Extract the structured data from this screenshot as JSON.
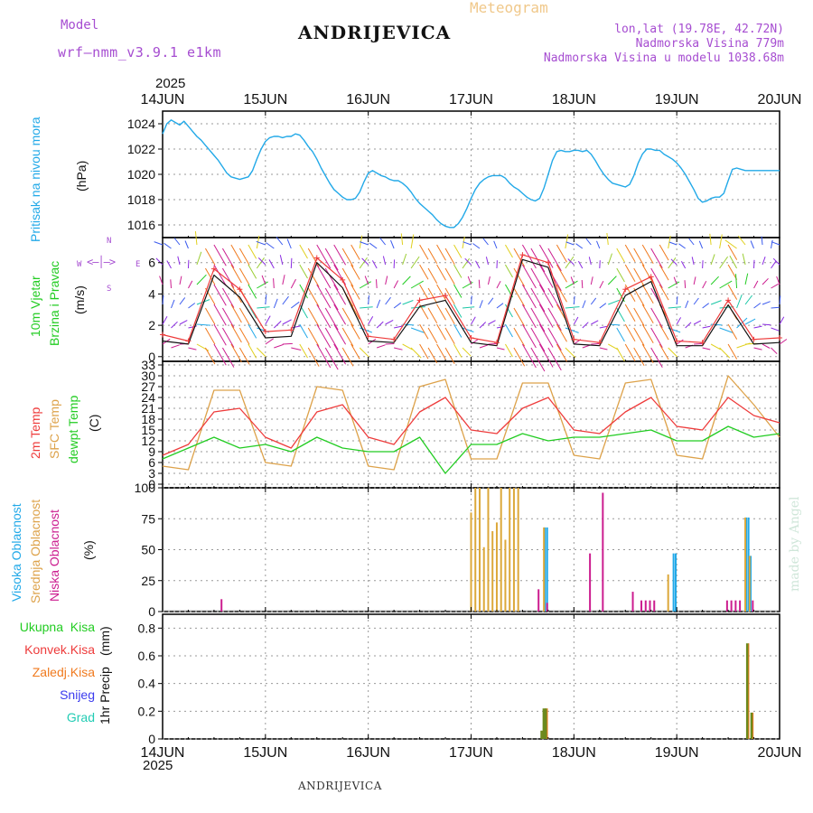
{
  "header": {
    "model_label": "Model",
    "model_name": "wrf–nmm_v3.9.1  e1km",
    "title": "ANDRIJEVICA",
    "meteogram": "Meteogram",
    "lonlat": "lon,lat (19.78E, 42.72N)",
    "elevation": "Nadmorska Visina 779m",
    "model_elevation": "Nadmorska Visina u modelu 1038.68m",
    "year": "2025",
    "footer_title": "ANDRIJEVICA",
    "credit": "made by Angel"
  },
  "colors": {
    "pressure": "#22a9e8",
    "temp": "#ee3b3b",
    "sfc": "#dda24a",
    "dew": "#22cc22",
    "high": "#22a9e8",
    "mid": "#dca83a",
    "low": "#cc1d8f",
    "total": "#22cc22",
    "conv": "#ee3b3b",
    "strat": "#f07a1e",
    "snow": "#3b3bee",
    "hail": "#22ccb4",
    "purple": "#a64dd1"
  },
  "x_days": [
    "14JUN",
    "15JUN",
    "16JUN",
    "17JUN",
    "18JUN",
    "19JUN",
    "20JUN"
  ],
  "chart_data": [
    {
      "type": "line",
      "panel": "pressure",
      "ylabel_name": "Pritisak na nivou mora",
      "ylabel_unit": "(hPa)",
      "yticks": [
        "1016",
        "1018",
        "1020",
        "1022",
        "1024"
      ],
      "ylim": [
        1015,
        1025
      ],
      "x": [
        0,
        1,
        2,
        3,
        4,
        5,
        6,
        7,
        8,
        9,
        10,
        11,
        12,
        13,
        14,
        15,
        16,
        17,
        18,
        19,
        20,
        21,
        22,
        23,
        24,
        25,
        26,
        27,
        28,
        29,
        30,
        31,
        32,
        33,
        34,
        35,
        36,
        37,
        38,
        39,
        40,
        41,
        42,
        43,
        44,
        45,
        46,
        47,
        48,
        49,
        50,
        51,
        52,
        53,
        54,
        55,
        56,
        57,
        58,
        59,
        60,
        61,
        62,
        63,
        64,
        65,
        66,
        67,
        68,
        69,
        70,
        71,
        72,
        73,
        74,
        75,
        76,
        77,
        78,
        79,
        80,
        81,
        82,
        83,
        84,
        85,
        86,
        87,
        88,
        89,
        90,
        91,
        92,
        93,
        94,
        95,
        96,
        97,
        98,
        99,
        100,
        101,
        102,
        103,
        104,
        105,
        106,
        107,
        108,
        109,
        110,
        111,
        112,
        113,
        114,
        115,
        116,
        117,
        118,
        119,
        120,
        121,
        122,
        123,
        124,
        125,
        126,
        127,
        128,
        129,
        130,
        131,
        132,
        133,
        134,
        135,
        136,
        137,
        138,
        139,
        140,
        141,
        142,
        143,
        144
      ],
      "series": [
        {
          "values": [
            1023.2,
            1024,
            1024.3,
            1024.1,
            1023.9,
            1024.2,
            1023.8,
            1023.4,
            1023,
            1022.7,
            1022.3,
            1021.9,
            1021.5,
            1021.1,
            1020.6,
            1020.1,
            1019.8,
            1019.7,
            1019.6,
            1019.7,
            1019.8,
            1020.3,
            1021.2,
            1022,
            1022.6,
            1022.9,
            1023,
            1023,
            1022.9,
            1023,
            1023,
            1023.2,
            1023.1,
            1022.7,
            1022.2,
            1021.8,
            1021.2,
            1020.5,
            1019.9,
            1019.3,
            1018.8,
            1018.5,
            1018.2,
            1018,
            1018,
            1018.1,
            1018.6,
            1019.4,
            1020.1,
            1020.3,
            1020.1,
            1019.9,
            1019.8,
            1019.6,
            1019.5,
            1019.5,
            1019.3,
            1019,
            1018.6,
            1018.1,
            1017.7,
            1017.4,
            1017.1,
            1016.8,
            1016.4,
            1016.1,
            1015.9,
            1015.8,
            1015.8,
            1016.1,
            1016.6,
            1017.3,
            1018.1,
            1018.8,
            1019.3,
            1019.6,
            1019.8,
            1019.9,
            1019.9,
            1019.9,
            1019.7,
            1019.3,
            1019,
            1018.8,
            1018.5,
            1018.2,
            1018,
            1017.9,
            1018.1,
            1018.9,
            1020,
            1021.1,
            1021.8,
            1021.9,
            1021.8,
            1021.8,
            1021.9,
            1021.9,
            1021.8,
            1021.9,
            1021.6,
            1021.1,
            1020.5,
            1020,
            1019.6,
            1019.3,
            1019.2,
            1019.1,
            1019,
            1019.2,
            1019.9,
            1020.9,
            1021.6,
            1022,
            1022,
            1021.9,
            1021.9,
            1021.6,
            1021.4,
            1021.2,
            1020.9,
            1020.5,
            1020,
            1019.4,
            1018.8,
            1018.1,
            1017.8,
            1017.9,
            1018.1,
            1018.2,
            1018.2,
            1018.5,
            1019.5,
            1020.4,
            1020.5,
            1020.4,
            1020.3,
            1020.3,
            1020.3,
            1020.3,
            1020.3,
            1020.3,
            1020.3,
            1020.3,
            1020.3
          ]
        }
      ]
    },
    {
      "type": "line",
      "panel": "wind",
      "ylabel_name1": "10m Vjetar",
      "ylabel_name2": "Brzina i Pravac",
      "ylabel_unit": "(m/s)",
      "compass": {
        "w": "W",
        "e": "E",
        "n": "N",
        "s": "S"
      },
      "yticks": [
        "0",
        "2",
        "4",
        "6"
      ],
      "ylim": [
        -0.3,
        7.6
      ],
      "x": [
        0,
        6,
        12,
        18,
        24,
        30,
        36,
        42,
        48,
        54,
        60,
        66,
        72,
        78,
        84,
        90,
        96,
        102,
        108,
        114,
        120,
        126,
        132,
        138,
        144
      ],
      "series": [
        {
          "name": "speed",
          "values": [
            1,
            0.8,
            5.2,
            3.8,
            1.2,
            1.3,
            6.0,
            4.4,
            1.0,
            0.9,
            3.2,
            3.6,
            0.9,
            0.7,
            6.2,
            5.7,
            0.8,
            0.7,
            3.9,
            4.8,
            0.7,
            0.7,
            3.3,
            0.8,
            0.9
          ]
        },
        {
          "name": "gust",
          "values": [
            1.4,
            1.0,
            5.6,
            4.3,
            1.6,
            1.7,
            6.3,
            4.9,
            1.3,
            1.1,
            3.6,
            3.9,
            1.2,
            0.9,
            6.5,
            6.0,
            1.1,
            0.9,
            4.3,
            5.1,
            1.0,
            0.9,
            3.6,
            1.1,
            1.2
          ]
        }
      ]
    },
    {
      "type": "line",
      "panel": "temperature",
      "ylabel_name1": "2m Temp",
      "ylabel_name2": "SFC Temp",
      "ylabel_name3": "dewpt Temp",
      "ylabel_unit": "(C)",
      "yticks": [
        "0",
        "3",
        "6",
        "9",
        "12",
        "15",
        "18",
        "21",
        "24",
        "27",
        "30",
        "33"
      ],
      "ylim": [
        -1,
        34
      ],
      "x": [
        0,
        6,
        12,
        18,
        24,
        30,
        36,
        42,
        48,
        54,
        60,
        66,
        72,
        78,
        84,
        90,
        96,
        102,
        108,
        114,
        120,
        126,
        132,
        138,
        144
      ],
      "series": [
        {
          "name": "2m",
          "values": [
            8,
            11,
            20,
            21,
            13,
            10,
            20,
            22,
            13,
            11,
            20,
            24,
            15,
            14,
            21,
            24,
            15,
            14,
            20,
            24,
            16,
            15,
            24,
            19,
            17
          ]
        },
        {
          "name": "sfc",
          "values": [
            5,
            4,
            26,
            26,
            6,
            5,
            27,
            26,
            5,
            4,
            27,
            29,
            7,
            7,
            28,
            28,
            8,
            7,
            28,
            29,
            8,
            7,
            30,
            22,
            13
          ]
        },
        {
          "name": "dew",
          "values": [
            7,
            10,
            13,
            10,
            11,
            9,
            13,
            10,
            9,
            9,
            13,
            3,
            11,
            11,
            14,
            12,
            13,
            13,
            14,
            15,
            12,
            12,
            16,
            13,
            14
          ]
        }
      ]
    },
    {
      "type": "bar",
      "panel": "clouds",
      "ylabel_name1": "Visoka Oblacnost",
      "ylabel_name2": "Srednja Oblacnost",
      "ylabel_name3": "Niska Oblacnost",
      "ylabel_unit": "(%)",
      "yticks": [
        "0",
        "25",
        "50",
        "75",
        "100"
      ],
      "ylim": [
        0,
        100
      ],
      "series": [
        {
          "name": "high",
          "x": [
            89,
            89.5,
            119,
            119.5,
            136,
            136.5,
            137
          ],
          "values": [
            68,
            68,
            47,
            47,
            76,
            76,
            45
          ]
        },
        {
          "name": "mid",
          "x": [
            72,
            73,
            74,
            75,
            76,
            77,
            78,
            79,
            80,
            81,
            82,
            83,
            89,
            118,
            136,
            137
          ],
          "values": [
            80,
            100,
            100,
            52,
            100,
            65,
            72,
            100,
            58,
            100,
            100,
            100,
            68,
            30,
            76,
            45
          ]
        },
        {
          "name": "low",
          "x": [
            14,
            88,
            90,
            100,
            103,
            110,
            112,
            113,
            114,
            115,
            132,
            133,
            134,
            135,
            138
          ],
          "values": [
            10,
            18,
            7,
            47,
            96,
            16,
            9,
            9,
            9,
            9,
            9,
            9,
            9,
            9,
            9
          ]
        }
      ]
    },
    {
      "type": "bar",
      "panel": "precip",
      "ylabel_name": "1hr Precip",
      "ylabel_unit": "(mm)",
      "legend": [
        "Ukupna  Kisa",
        "Konvek.Kisa",
        "Zaledj.Kisa",
        "Snijeg",
        "Grad"
      ],
      "yticks": [
        "0",
        "0.2",
        "0.4",
        "0.6",
        "0.8"
      ],
      "ylim": [
        0,
        0.9
      ],
      "series": [
        {
          "name": "total",
          "x": [
            88.5,
            89,
            89.5,
            136.5,
            137.5
          ],
          "values": [
            0.06,
            0.22,
            0.22,
            0.69,
            0.19
          ]
        }
      ]
    }
  ]
}
